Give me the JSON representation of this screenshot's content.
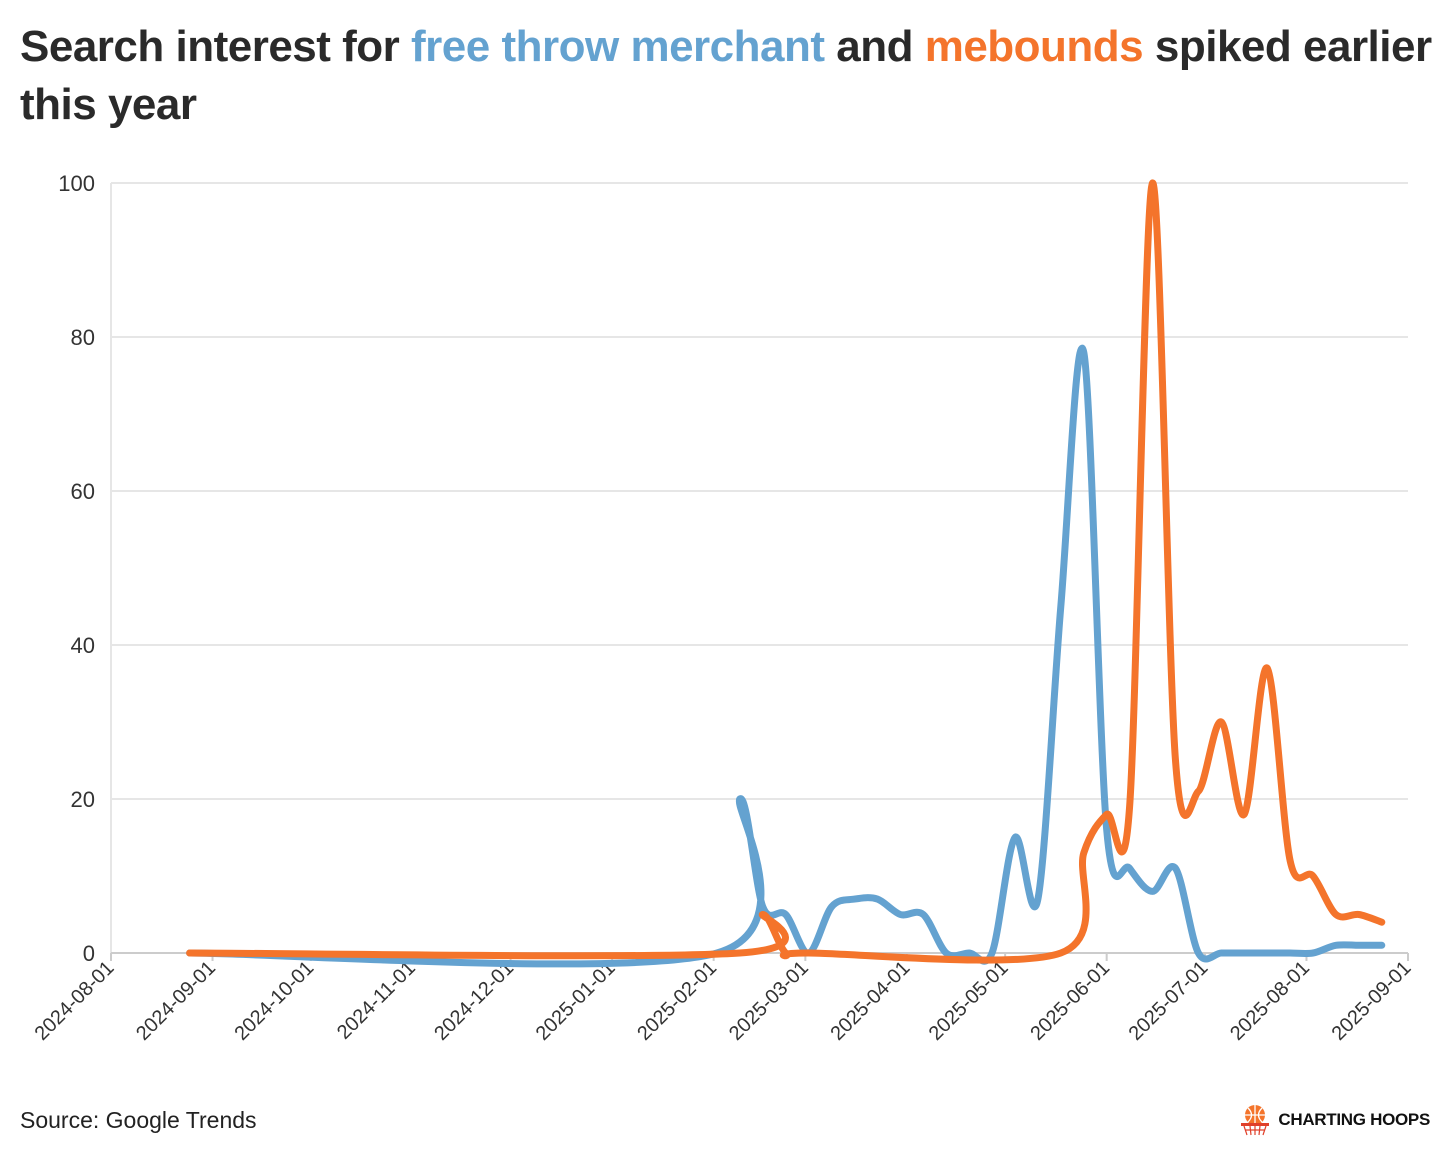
{
  "title": {
    "part1": "Search interest for ",
    "series1": "free throw merchant",
    "part2": " and ",
    "series2": "mebounds",
    "part3": " spiked earlier this year"
  },
  "source": "Source: Google Trends",
  "brand": {
    "name": "CHARTING HOOPS",
    "icon": "basketball-hoop-icon"
  },
  "chart_data": {
    "type": "line",
    "xlabel": "",
    "ylabel": "",
    "ylim": [
      0,
      100
    ],
    "yticks": [
      0,
      20,
      40,
      60,
      80,
      100
    ],
    "xlim": [
      "2024-08-01",
      "2025-09-01"
    ],
    "xticks": [
      "2024-08-01",
      "2024-09-01",
      "2024-10-01",
      "2024-11-01",
      "2024-12-01",
      "2025-01-01",
      "2025-02-01",
      "2025-03-01",
      "2025-04-01",
      "2025-05-01",
      "2025-06-01",
      "2025-07-01",
      "2025-08-01",
      "2025-09-01"
    ],
    "grid": true,
    "legend": "none",
    "colors": {
      "free throw merchant": "#64a2d0",
      "mebounds": "#f4742b"
    },
    "series": [
      {
        "name": "free throw merchant",
        "color": "#64a2d0",
        "points": [
          [
            "2024-08-25",
            0
          ],
          [
            "2025-02-02",
            0
          ],
          [
            "2025-02-09",
            20
          ],
          [
            "2025-02-16",
            6
          ],
          [
            "2025-02-23",
            5
          ],
          [
            "2025-03-02",
            0
          ],
          [
            "2025-03-09",
            6
          ],
          [
            "2025-03-16",
            7
          ],
          [
            "2025-03-23",
            7
          ],
          [
            "2025-03-30",
            5
          ],
          [
            "2025-04-06",
            5
          ],
          [
            "2025-04-13",
            0
          ],
          [
            "2025-04-20",
            0
          ],
          [
            "2025-04-27",
            0
          ],
          [
            "2025-05-04",
            15
          ],
          [
            "2025-05-11",
            7
          ],
          [
            "2025-05-18",
            45
          ],
          [
            "2025-05-25",
            78
          ],
          [
            "2025-06-01",
            16
          ],
          [
            "2025-06-08",
            11
          ],
          [
            "2025-06-15",
            8
          ],
          [
            "2025-06-22",
            11
          ],
          [
            "2025-06-29",
            0
          ],
          [
            "2025-07-06",
            0
          ],
          [
            "2025-07-13",
            0
          ],
          [
            "2025-07-20",
            0
          ],
          [
            "2025-07-27",
            0
          ],
          [
            "2025-08-03",
            0
          ],
          [
            "2025-08-10",
            1
          ],
          [
            "2025-08-17",
            1
          ],
          [
            "2025-08-24",
            1
          ]
        ]
      },
      {
        "name": "mebounds",
        "color": "#f4742b",
        "points": [
          [
            "2024-08-25",
            0
          ],
          [
            "2025-02-09",
            0
          ],
          [
            "2025-02-16",
            5
          ],
          [
            "2025-02-23",
            0
          ],
          [
            "2025-03-02",
            0
          ],
          [
            "2025-05-18",
            0
          ],
          [
            "2025-05-25",
            13
          ],
          [
            "2025-06-01",
            18
          ],
          [
            "2025-06-08",
            19
          ],
          [
            "2025-06-15",
            100
          ],
          [
            "2025-06-22",
            25
          ],
          [
            "2025-06-29",
            21
          ],
          [
            "2025-07-06",
            30
          ],
          [
            "2025-07-13",
            18
          ],
          [
            "2025-07-20",
            37
          ],
          [
            "2025-07-27",
            12
          ],
          [
            "2025-08-03",
            10
          ],
          [
            "2025-08-10",
            5
          ],
          [
            "2025-08-17",
            5
          ],
          [
            "2025-08-24",
            4
          ]
        ]
      }
    ]
  }
}
